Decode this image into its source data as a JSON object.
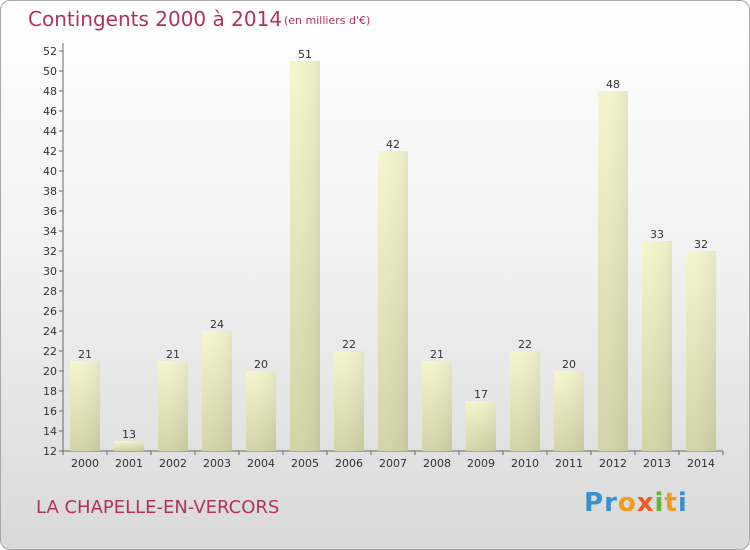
{
  "header": {
    "title": "Contingents 2000 à 2014",
    "subtitle": "(en milliers d'€)"
  },
  "footer": {
    "location": "LA CHAPELLE-EN-VERCORS"
  },
  "logo": {
    "text": "Proxiti",
    "letter_colors": [
      "#3a8fd0",
      "#3a8fd0",
      "#f29a1f",
      "#ef5a1e",
      "#66b532",
      "#f29a1f",
      "#3a8fd0"
    ]
  },
  "chart_data": {
    "type": "bar",
    "title": "Contingents 2000 à 2014",
    "subtitle": "(en milliers d'€)",
    "categories": [
      "2000",
      "2001",
      "2002",
      "2003",
      "2004",
      "2005",
      "2006",
      "2007",
      "2008",
      "2009",
      "2010",
      "2011",
      "2012",
      "2013",
      "2014"
    ],
    "values": [
      21,
      13,
      21,
      24,
      20,
      51,
      22,
      42,
      21,
      17,
      22,
      20,
      48,
      33,
      32
    ],
    "ylim": [
      12,
      52
    ],
    "yticks": [
      12,
      14,
      16,
      18,
      20,
      22,
      24,
      26,
      28,
      30,
      32,
      34,
      36,
      38,
      40,
      42,
      44,
      46,
      48,
      50,
      52
    ],
    "grid": false,
    "bar_color": "#f5f5cf",
    "bar_color_dark": "#d4d4a8"
  }
}
